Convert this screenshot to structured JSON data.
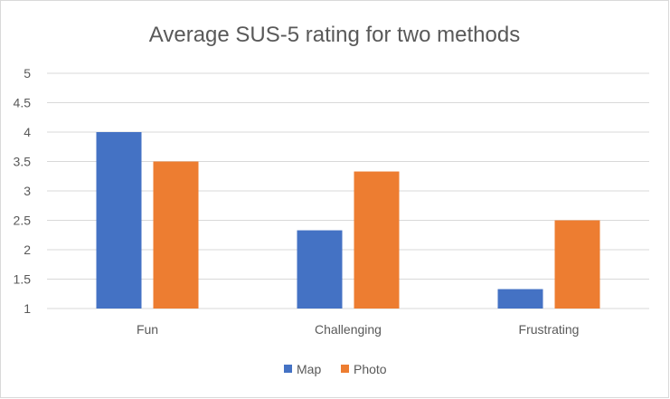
{
  "chart_data": {
    "type": "bar",
    "title": "Average SUS-5 rating for two methods",
    "xlabel": "",
    "ylabel": "",
    "categories": [
      "Fun",
      "Challenging",
      "Frustrating"
    ],
    "series": [
      {
        "name": "Map",
        "values": [
          4,
          2.33,
          1.33
        ],
        "color": "#4472C4"
      },
      {
        "name": "Photo",
        "values": [
          3.5,
          3.33,
          2.5
        ],
        "color": "#ED7D31"
      }
    ],
    "ylim": [
      1,
      5
    ],
    "yticks": [
      "1",
      "1.5",
      "2",
      "2.5",
      "3",
      "3.5",
      "4",
      "4.5",
      "5"
    ],
    "grid": true,
    "legend_position": "bottom"
  }
}
